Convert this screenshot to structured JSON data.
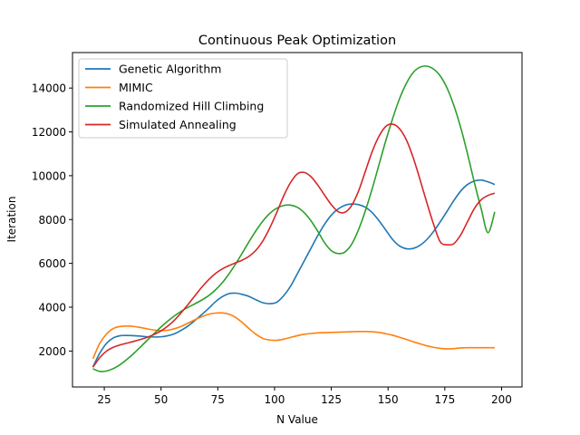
{
  "chart_data": {
    "type": "line",
    "title": "Continuous Peak Optimization",
    "xlabel": "N Value",
    "ylabel": "Iteration",
    "xlim": [
      11,
      209
    ],
    "ylim": [
      360,
      15620
    ],
    "xticks": [
      25,
      50,
      75,
      100,
      125,
      150,
      175,
      200
    ],
    "yticks": [
      2000,
      4000,
      6000,
      8000,
      10000,
      12000,
      14000
    ],
    "grid": false,
    "legend_position": "top-left",
    "series": [
      {
        "name": "Genetic Algorithm",
        "color": "#1f77b4",
        "points": [
          [
            20,
            1280
          ],
          [
            23,
            1900
          ],
          [
            26,
            2350
          ],
          [
            29,
            2600
          ],
          [
            32,
            2700
          ],
          [
            35,
            2710
          ],
          [
            38,
            2700
          ],
          [
            41,
            2680
          ],
          [
            44,
            2650
          ],
          [
            47,
            2640
          ],
          [
            50,
            2650
          ],
          [
            53,
            2700
          ],
          [
            56,
            2790
          ],
          [
            59,
            2950
          ],
          [
            62,
            3150
          ],
          [
            65,
            3400
          ],
          [
            68,
            3670
          ],
          [
            71,
            3950
          ],
          [
            74,
            4250
          ],
          [
            77,
            4480
          ],
          [
            80,
            4620
          ],
          [
            83,
            4640
          ],
          [
            86,
            4580
          ],
          [
            89,
            4480
          ],
          [
            92,
            4330
          ],
          [
            95,
            4200
          ],
          [
            98,
            4160
          ],
          [
            101,
            4230
          ],
          [
            104,
            4520
          ],
          [
            107,
            4950
          ],
          [
            110,
            5520
          ],
          [
            113,
            6100
          ],
          [
            116,
            6680
          ],
          [
            119,
            7260
          ],
          [
            122,
            7780
          ],
          [
            125,
            8200
          ],
          [
            128,
            8480
          ],
          [
            131,
            8650
          ],
          [
            134,
            8710
          ],
          [
            137,
            8680
          ],
          [
            140,
            8560
          ],
          [
            143,
            8320
          ],
          [
            146,
            7950
          ],
          [
            149,
            7520
          ],
          [
            152,
            7090
          ],
          [
            155,
            6800
          ],
          [
            158,
            6670
          ],
          [
            161,
            6680
          ],
          [
            164,
            6820
          ],
          [
            167,
            7080
          ],
          [
            170,
            7450
          ],
          [
            173,
            7900
          ],
          [
            176,
            8380
          ],
          [
            179,
            8870
          ],
          [
            182,
            9300
          ],
          [
            185,
            9600
          ],
          [
            188,
            9760
          ],
          [
            191,
            9800
          ],
          [
            194,
            9720
          ],
          [
            197,
            9600
          ]
        ]
      },
      {
        "name": "MIMIC",
        "color": "#ff7f0e",
        "points": [
          [
            20,
            1650
          ],
          [
            23,
            2350
          ],
          [
            26,
            2780
          ],
          [
            29,
            3030
          ],
          [
            32,
            3120
          ],
          [
            35,
            3140
          ],
          [
            38,
            3120
          ],
          [
            41,
            3070
          ],
          [
            44,
            3010
          ],
          [
            47,
            2960
          ],
          [
            50,
            2930
          ],
          [
            53,
            2950
          ],
          [
            56,
            3020
          ],
          [
            59,
            3130
          ],
          [
            62,
            3280
          ],
          [
            65,
            3430
          ],
          [
            68,
            3570
          ],
          [
            71,
            3680
          ],
          [
            74,
            3730
          ],
          [
            77,
            3740
          ],
          [
            80,
            3680
          ],
          [
            83,
            3520
          ],
          [
            86,
            3280
          ],
          [
            89,
            3000
          ],
          [
            92,
            2750
          ],
          [
            95,
            2570
          ],
          [
            98,
            2500
          ],
          [
            101,
            2490
          ],
          [
            104,
            2540
          ],
          [
            107,
            2620
          ],
          [
            110,
            2700
          ],
          [
            113,
            2760
          ],
          [
            116,
            2800
          ],
          [
            119,
            2830
          ],
          [
            122,
            2840
          ],
          [
            125,
            2850
          ],
          [
            128,
            2860
          ],
          [
            131,
            2870
          ],
          [
            134,
            2880
          ],
          [
            137,
            2890
          ],
          [
            140,
            2890
          ],
          [
            143,
            2880
          ],
          [
            146,
            2850
          ],
          [
            149,
            2790
          ],
          [
            152,
            2720
          ],
          [
            155,
            2630
          ],
          [
            158,
            2530
          ],
          [
            161,
            2430
          ],
          [
            164,
            2330
          ],
          [
            167,
            2240
          ],
          [
            170,
            2170
          ],
          [
            173,
            2120
          ],
          [
            176,
            2100
          ],
          [
            179,
            2110
          ],
          [
            182,
            2140
          ],
          [
            185,
            2150
          ],
          [
            188,
            2150
          ],
          [
            191,
            2150
          ],
          [
            194,
            2150
          ],
          [
            197,
            2150
          ]
        ]
      },
      {
        "name": "Randomized Hill Climbing",
        "color": "#2ca02c",
        "points": [
          [
            20,
            1190
          ],
          [
            23,
            1070
          ],
          [
            26,
            1090
          ],
          [
            29,
            1200
          ],
          [
            32,
            1380
          ],
          [
            35,
            1620
          ],
          [
            38,
            1890
          ],
          [
            41,
            2190
          ],
          [
            44,
            2500
          ],
          [
            47,
            2800
          ],
          [
            50,
            3100
          ],
          [
            53,
            3370
          ],
          [
            56,
            3610
          ],
          [
            59,
            3820
          ],
          [
            62,
            4000
          ],
          [
            65,
            4160
          ],
          [
            68,
            4330
          ],
          [
            71,
            4530
          ],
          [
            74,
            4790
          ],
          [
            77,
            5120
          ],
          [
            80,
            5530
          ],
          [
            83,
            6000
          ],
          [
            86,
            6510
          ],
          [
            89,
            7030
          ],
          [
            92,
            7520
          ],
          [
            95,
            7950
          ],
          [
            98,
            8290
          ],
          [
            101,
            8520
          ],
          [
            104,
            8640
          ],
          [
            107,
            8660
          ],
          [
            110,
            8560
          ],
          [
            113,
            8320
          ],
          [
            116,
            7950
          ],
          [
            119,
            7470
          ],
          [
            122,
            6950
          ],
          [
            125,
            6580
          ],
          [
            128,
            6450
          ],
          [
            131,
            6520
          ],
          [
            134,
            6880
          ],
          [
            137,
            7540
          ],
          [
            140,
            8400
          ],
          [
            143,
            9400
          ],
          [
            146,
            10500
          ],
          [
            149,
            11600
          ],
          [
            152,
            12600
          ],
          [
            155,
            13500
          ],
          [
            158,
            14200
          ],
          [
            161,
            14700
          ],
          [
            164,
            14950
          ],
          [
            167,
            15000
          ],
          [
            170,
            14870
          ],
          [
            173,
            14550
          ],
          [
            176,
            14000
          ],
          [
            179,
            13200
          ],
          [
            182,
            12200
          ],
          [
            185,
            11000
          ],
          [
            188,
            9700
          ],
          [
            191,
            8500
          ],
          [
            194,
            7400
          ],
          [
            197,
            8350
          ]
        ]
      },
      {
        "name": "Simulated Annealing",
        "color": "#d62728",
        "points": [
          [
            20,
            1260
          ],
          [
            23,
            1700
          ],
          [
            26,
            2000
          ],
          [
            29,
            2170
          ],
          [
            32,
            2280
          ],
          [
            35,
            2360
          ],
          [
            38,
            2440
          ],
          [
            41,
            2530
          ],
          [
            44,
            2630
          ],
          [
            47,
            2760
          ],
          [
            50,
            2920
          ],
          [
            53,
            3140
          ],
          [
            56,
            3420
          ],
          [
            59,
            3760
          ],
          [
            62,
            4140
          ],
          [
            65,
            4530
          ],
          [
            68,
            4920
          ],
          [
            71,
            5260
          ],
          [
            74,
            5540
          ],
          [
            77,
            5750
          ],
          [
            80,
            5900
          ],
          [
            83,
            6030
          ],
          [
            86,
            6160
          ],
          [
            89,
            6340
          ],
          [
            92,
            6620
          ],
          [
            95,
            7050
          ],
          [
            98,
            7640
          ],
          [
            101,
            8330
          ],
          [
            104,
            9070
          ],
          [
            107,
            9680
          ],
          [
            110,
            10080
          ],
          [
            113,
            10150
          ],
          [
            116,
            9960
          ],
          [
            119,
            9580
          ],
          [
            122,
            9120
          ],
          [
            125,
            8680
          ],
          [
            128,
            8360
          ],
          [
            131,
            8330
          ],
          [
            134,
            8650
          ],
          [
            137,
            9300
          ],
          [
            140,
            10200
          ],
          [
            143,
            11100
          ],
          [
            146,
            11800
          ],
          [
            149,
            12250
          ],
          [
            152,
            12350
          ],
          [
            155,
            12150
          ],
          [
            158,
            11650
          ],
          [
            161,
            10850
          ],
          [
            164,
            9850
          ],
          [
            167,
            8800
          ],
          [
            170,
            7800
          ],
          [
            173,
            6980
          ],
          [
            176,
            6850
          ],
          [
            179,
            6900
          ],
          [
            182,
            7300
          ],
          [
            185,
            7900
          ],
          [
            188,
            8500
          ],
          [
            191,
            8900
          ],
          [
            194,
            9100
          ],
          [
            197,
            9200
          ]
        ]
      }
    ]
  }
}
